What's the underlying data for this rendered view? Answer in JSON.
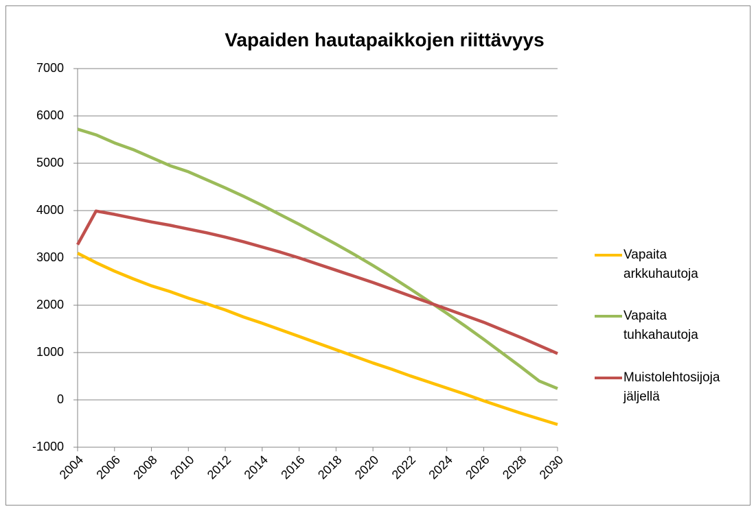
{
  "chart_data": {
    "type": "line",
    "title": "Vapaiden hautapaikkojen riittävyys",
    "x": [
      2004,
      2005,
      2006,
      2007,
      2008,
      2009,
      2010,
      2011,
      2012,
      2013,
      2014,
      2015,
      2016,
      2017,
      2018,
      2019,
      2020,
      2021,
      2022,
      2023,
      2024,
      2025,
      2026,
      2027,
      2028,
      2029,
      2030
    ],
    "series": [
      {
        "name": "Vapaita arkkuhautoja",
        "color": "#ffc000",
        "values": [
          3100,
          2900,
          2720,
          2560,
          2410,
          2290,
          2150,
          2030,
          1900,
          1750,
          1620,
          1480,
          1340,
          1200,
          1060,
          920,
          780,
          650,
          510,
          380,
          250,
          120,
          -20,
          -150,
          -280,
          -400,
          -520
        ]
      },
      {
        "name": "Vapaita tuhkahautoja",
        "color": "#9bbb59",
        "values": [
          5720,
          5600,
          5430,
          5290,
          5120,
          4950,
          4820,
          4650,
          4480,
          4300,
          4110,
          3910,
          3710,
          3500,
          3290,
          3070,
          2840,
          2600,
          2350,
          2090,
          1830,
          1560,
          1280,
          990,
          700,
          400,
          240
        ]
      },
      {
        "name": "Muistolehtosijoja jäljellä",
        "color": "#c0504d",
        "values": [
          3280,
          3990,
          3920,
          3840,
          3760,
          3690,
          3610,
          3530,
          3440,
          3340,
          3230,
          3120,
          3000,
          2870,
          2740,
          2610,
          2480,
          2340,
          2200,
          2060,
          1920,
          1780,
          1640,
          1480,
          1320,
          1150,
          980
        ]
      }
    ],
    "xlim": [
      2004,
      2030
    ],
    "xticks": [
      2004,
      2006,
      2008,
      2010,
      2012,
      2014,
      2016,
      2018,
      2020,
      2022,
      2024,
      2026,
      2028,
      2030
    ],
    "ylim": [
      -1000,
      7000
    ],
    "yticks": [
      -1000,
      0,
      1000,
      2000,
      3000,
      4000,
      5000,
      6000,
      7000
    ],
    "grid": true,
    "legend": "right"
  }
}
